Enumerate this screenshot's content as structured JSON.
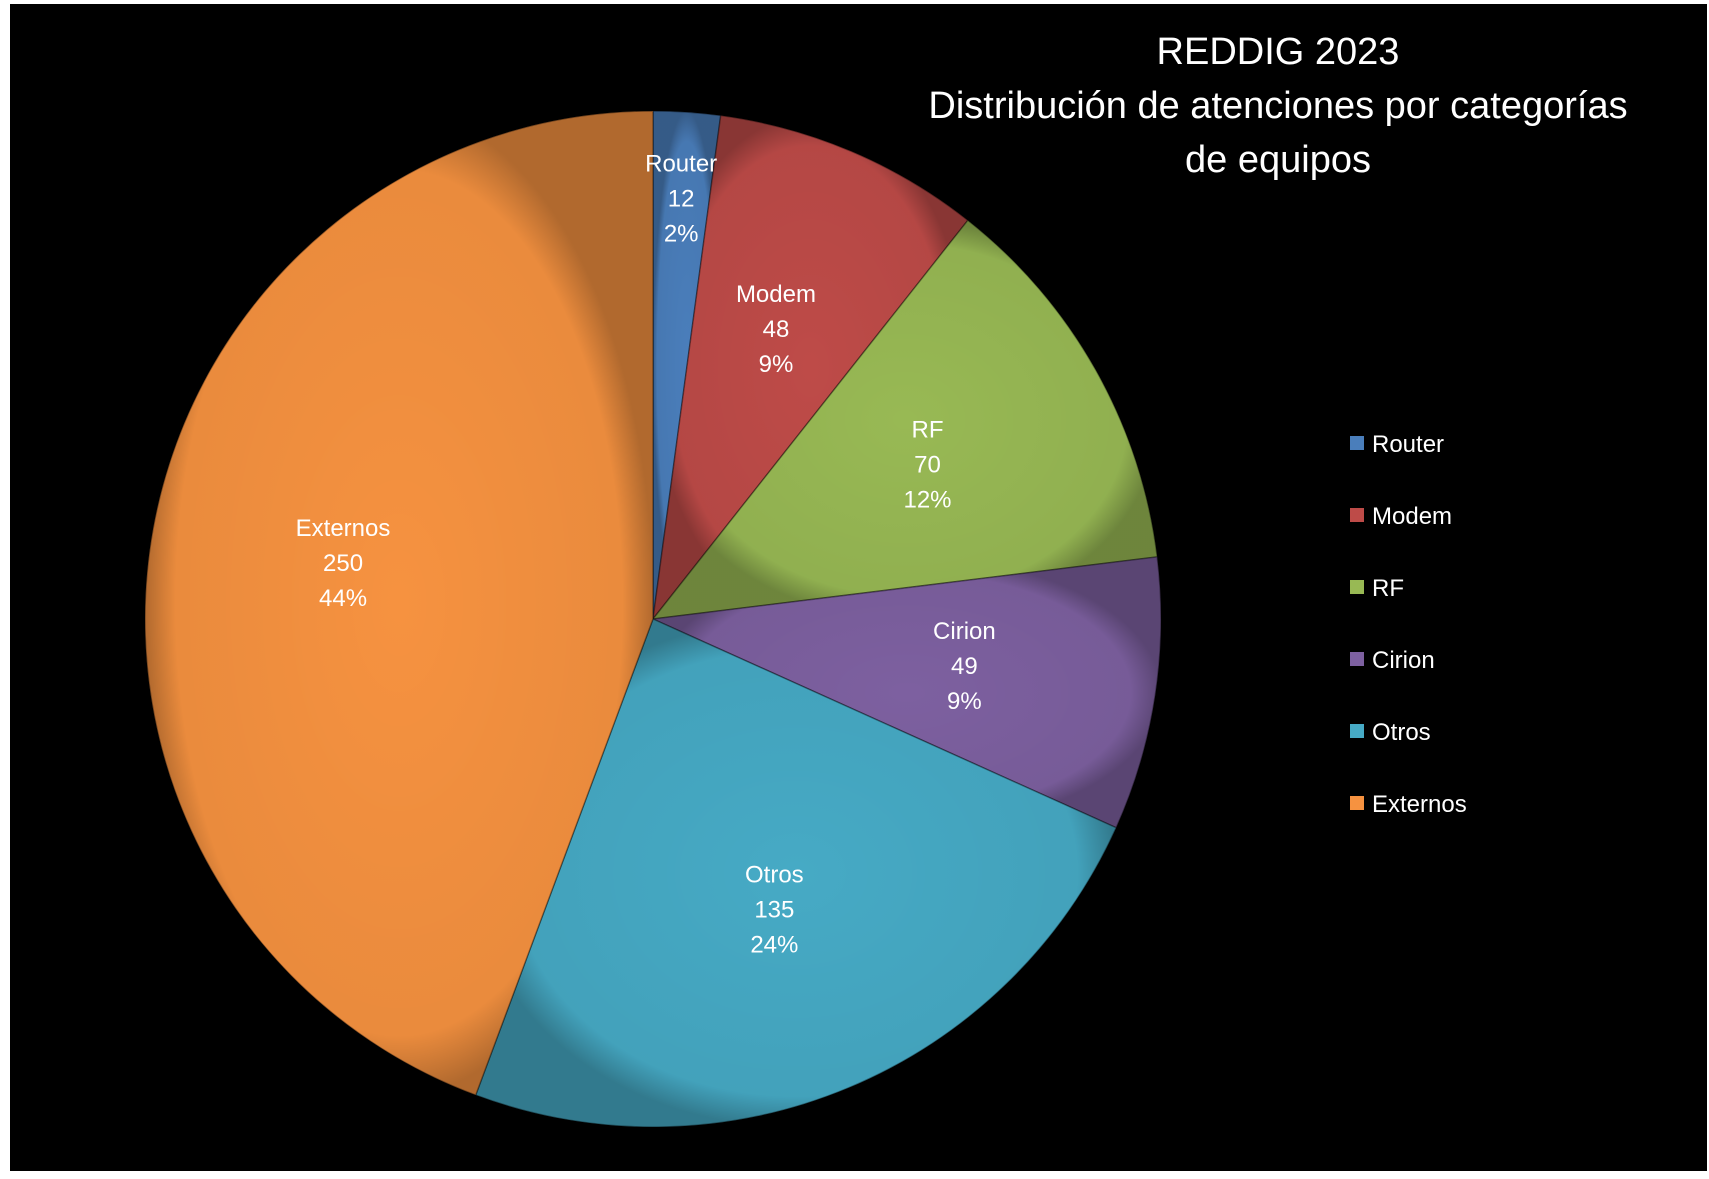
{
  "chart_data": {
    "type": "pie",
    "title_lines": [
      "REDDIG 2023",
      "Distribución de atenciones por categorías",
      "de equipos"
    ],
    "legend_position": "right",
    "slices": [
      {
        "label": "Router",
        "value": 12,
        "percent": "2%",
        "color": "#4A7EBB"
      },
      {
        "label": "Modem",
        "value": 48,
        "percent": "9%",
        "color": "#BE4B48"
      },
      {
        "label": "RF",
        "value": 70,
        "percent": "12%",
        "color": "#98B954"
      },
      {
        "label": "Cirion",
        "value": 49,
        "percent": "9%",
        "color": "#7D60A0"
      },
      {
        "label": "Otros",
        "value": 135,
        "percent": "24%",
        "color": "#46AAC5"
      },
      {
        "label": "Externos",
        "value": 250,
        "percent": "44%",
        "color": "#F69240"
      }
    ]
  }
}
